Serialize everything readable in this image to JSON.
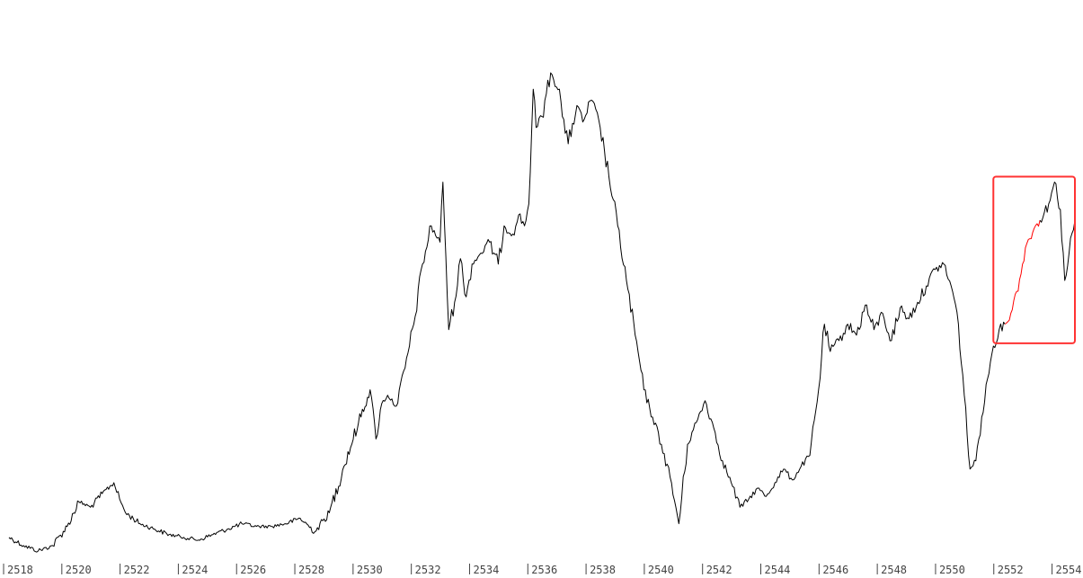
{
  "chart_data": {
    "type": "line",
    "title": "",
    "xlabel": "",
    "ylabel": "",
    "xlim": [
      2518,
      2554.6
    ],
    "ylim": [
      0,
      100
    ],
    "grid": false,
    "legend": "none",
    "x_ticks": [
      "2518",
      "2520",
      "2522",
      "2524",
      "2526",
      "2528",
      "2530",
      "2532",
      "2534",
      "2536",
      "2538",
      "2540",
      "2542",
      "2544",
      "2546",
      "2548",
      "2550",
      "2552",
      "2554"
    ],
    "series": [
      {
        "color": "#000000",
        "x": [
          2518.0,
          2518.5,
          2519.0,
          2519.5,
          2520.0,
          2520.4,
          2520.8,
          2521.2,
          2521.6,
          2521.8,
          2522.0,
          2522.5,
          2523.0,
          2523.5,
          2524.0,
          2524.5,
          2525.0,
          2525.5,
          2526.0,
          2526.5,
          2527.0,
          2527.5,
          2528.0,
          2528.5,
          2529.0,
          2529.5,
          2530.0,
          2530.4,
          2530.6,
          2530.8,
          2531.0,
          2531.3,
          2531.6,
          2531.9,
          2532.2,
          2532.5,
          2532.8,
          2532.9,
          2533.1,
          2533.3,
          2533.5,
          2533.7,
          2533.9,
          2534.2,
          2534.5,
          2534.8,
          2535.0,
          2535.3,
          2535.5,
          2535.7,
          2535.85,
          2536.0,
          2536.1,
          2536.3,
          2536.6,
          2536.9,
          2537.0,
          2537.2,
          2537.5,
          2537.7,
          2538.0,
          2538.3,
          2538.6,
          2538.9,
          2539.2,
          2539.5,
          2539.8,
          2540.1,
          2540.4,
          2540.7,
          2541.0,
          2541.3,
          2541.6,
          2541.9,
          2542.2,
          2542.5,
          2542.8,
          2543.1,
          2543.4,
          2543.7,
          2544.0,
          2544.3,
          2544.6,
          2544.9,
          2545.2,
          2545.5,
          2545.8,
          2546.0,
          2546.2,
          2546.5,
          2546.8,
          2547.1,
          2547.4,
          2547.7,
          2548.0,
          2548.3,
          2548.6,
          2548.9,
          2549.2,
          2549.5,
          2549.8,
          2550.1,
          2550.4,
          2550.6,
          2550.8,
          2551.0,
          2551.2,
          2551.4,
          2551.6,
          2551.8,
          2552.0,
          2552.2
        ],
        "y": [
          3.0,
          1.5,
          0.5,
          1.5,
          5.0,
          9.5,
          8.5,
          11.0,
          13.0,
          10.0,
          7.5,
          5.5,
          4.5,
          3.5,
          3.0,
          2.5,
          3.5,
          4.5,
          5.5,
          5.0,
          5.0,
          5.5,
          6.5,
          4.0,
          7.5,
          16.0,
          24.0,
          30.0,
          21.0,
          27.5,
          29.0,
          27.0,
          34.0,
          42.0,
          53.0,
          60.0,
          57.0,
          68.0,
          41.0,
          46.0,
          54.0,
          47.0,
          53.0,
          55.0,
          57.0,
          53.0,
          60.0,
          58.5,
          62.0,
          60.0,
          64.0,
          85.0,
          78.0,
          80.0,
          88.0,
          85.0,
          80.0,
          75.0,
          82.0,
          79.0,
          83.0,
          78.0,
          69.0,
          60.0,
          50.0,
          40.0,
          30.0,
          25.0,
          20.0,
          14.0,
          5.5,
          20.0,
          24.0,
          28.0,
          23.0,
          17.0,
          13.0,
          8.5,
          10.0,
          12.0,
          10.5,
          13.0,
          15.5,
          13.5,
          16.0,
          18.0,
          30.0,
          42.0,
          37.0,
          39.0,
          42.0,
          40.0,
          45.5,
          41.0,
          44.0,
          39.0,
          45.0,
          43.0,
          46.0,
          49.0,
          52.0,
          53.0,
          48.0,
          42.0,
          29.0,
          15.5,
          17.0,
          25.0,
          32.0,
          38.0,
          41.0,
          42.0
        ]
      },
      {
        "color": "#ff0000",
        "x": [
          2552.2,
          2552.4,
          2552.6,
          2552.8,
          2553.0,
          2553.2,
          2553.4
        ],
        "y": [
          42.0,
          44.0,
          48.0,
          53.0,
          57.5,
          59.5,
          61.0
        ]
      },
      {
        "color": "#000000",
        "x": [
          2553.4,
          2553.7,
          2553.9,
          2554.1,
          2554.25,
          2554.4,
          2554.6
        ],
        "y": [
          61.0,
          64.0,
          68.0,
          63.0,
          50.0,
          55.0,
          61.0
        ]
      }
    ],
    "highlight_box": {
      "x": [
        2551.8,
        2554.6
      ],
      "y": [
        38.5,
        69.0
      ],
      "color": "#ff3333"
    }
  }
}
